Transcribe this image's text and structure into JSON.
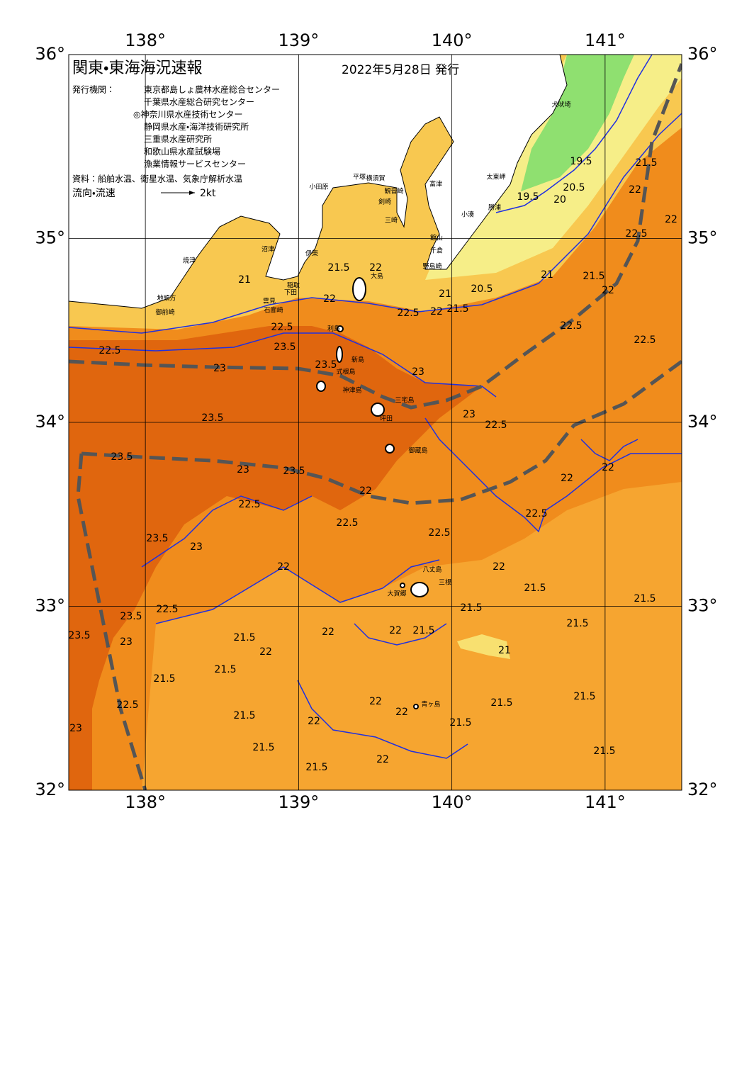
{
  "header": {
    "title": "関東・東海海況速報",
    "issued": "2022年5月28日 発行",
    "issuer_label": "発行機関：",
    "issuers": [
      "東京都島しょ農林水産総合センター",
      "千葉県水産総合研究センター",
      "◎神奈川県水産技術センター",
      "静岡県水産・海洋技術研究所",
      "三重県水産研究所",
      "和歌山県水産試験場",
      "漁業情報サービスセンター"
    ],
    "source": "資料：船舶水温、衛星水温、気象庁解析水温",
    "flow_label": "流向・流速",
    "flow_scale": "2kt"
  },
  "axes": {
    "lon_ticks": [
      {
        "value": 138,
        "label": "138°"
      },
      {
        "value": 139,
        "label": "139°"
      },
      {
        "value": 140,
        "label": "140°"
      },
      {
        "value": 141,
        "label": "141°"
      }
    ],
    "lat_ticks": [
      {
        "value": 36,
        "label": "36°"
      },
      {
        "value": 35,
        "label": "35°"
      },
      {
        "value": 34,
        "label": "34°"
      },
      {
        "value": 33,
        "label": "33°"
      },
      {
        "value": 32,
        "label": "32°"
      }
    ],
    "lon_range": [
      137.5,
      141.5
    ],
    "lat_range": [
      32,
      36
    ]
  },
  "places": [
    "犬吠埼",
    "太東岬",
    "勝浦",
    "小湊",
    "富津",
    "館山",
    "千倉",
    "野島崎",
    "横須賀",
    "観音崎",
    "剣崎",
    "三崎",
    "平塚",
    "小田原",
    "伊東",
    "稲取",
    "下田",
    "雲見",
    "石廊崎",
    "沼津",
    "焼津",
    "地頭方",
    "御前崎",
    "大島",
    "利島",
    "新島",
    "式根島",
    "神津島",
    "三宅島",
    "坪田",
    "御蔵島",
    "八丈島",
    "三根",
    "大賀郷",
    "青ヶ島"
  ],
  "contour_labels": [
    22,
    21.5,
    22,
    22.5,
    22,
    21.5,
    20.5,
    21,
    21,
    21.5,
    22,
    22,
    22,
    22.5,
    21.5,
    20,
    20.5,
    19.5,
    19.5,
    21,
    22.5,
    23.5,
    22.5,
    23,
    23.5,
    23,
    23,
    22.5,
    22.5,
    22.5,
    23.5,
    23.5,
    23,
    23.5,
    22,
    22.5,
    22.5,
    22.5,
    23.5,
    23,
    22,
    22,
    22,
    22.5,
    22,
    21.5,
    21.5,
    22.5,
    21.5,
    21.5,
    23.5,
    23.5,
    23,
    22,
    22,
    21.5,
    21.5,
    21,
    22,
    21.5,
    21.5,
    22,
    21.5,
    21.5,
    22.5,
    22,
    21.5,
    21.5,
    22,
    21.5,
    21.5,
    21.5,
    22,
    23
  ]
}
